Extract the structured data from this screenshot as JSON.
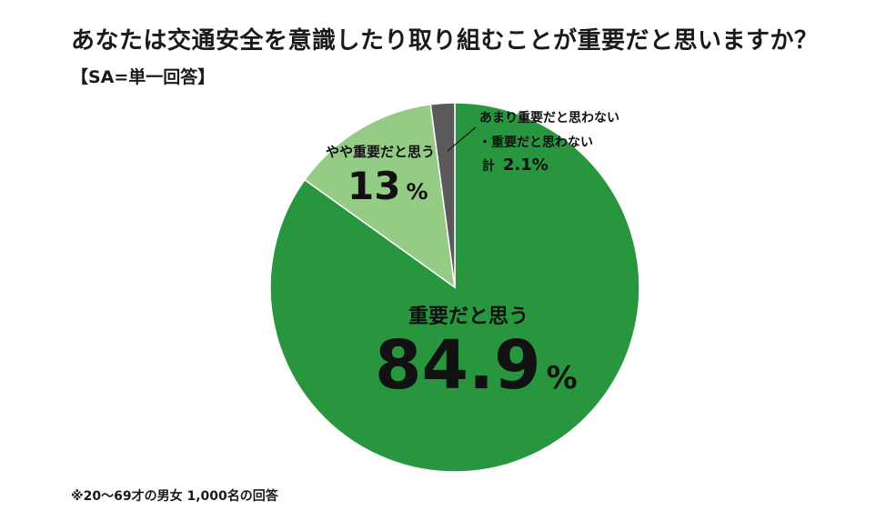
{
  "header": {
    "title": "あなたは交通安全を意識したり取り組むことが重要だと思いますか？",
    "subtitle": "【SA=単一回答】"
  },
  "footnote": "※20〜69才の男女 1,000名の回答",
  "chart_data": {
    "type": "pie",
    "start_angle_deg": 0,
    "direction": "clockwise",
    "slices": [
      {
        "name": "重要だと思う",
        "value": 84.9,
        "value_label": "84.9",
        "unit": "%",
        "color": "#27963f"
      },
      {
        "name": "やや重要だと思う",
        "value": 13,
        "value_label": "13",
        "unit": "%",
        "color": "#94cb85"
      },
      {
        "name_line1": "あまり重要だと思わない",
        "name_line2": "・重要だと思わない",
        "total_prefix": "計",
        "value": 2.1,
        "value_label": "2.1%",
        "color": "#595959"
      }
    ]
  }
}
